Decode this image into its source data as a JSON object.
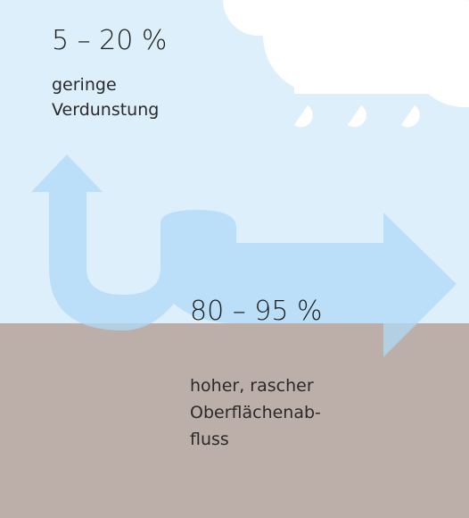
{
  "evaporation": {
    "percent": "5 – 20 %",
    "lines": [
      "geringe",
      "Verdunstung"
    ]
  },
  "runoff": {
    "percent": "80 – 95 %",
    "lines": [
      "hoher, rascher",
      "Oberflächenab-",
      "fluss"
    ]
  }
}
